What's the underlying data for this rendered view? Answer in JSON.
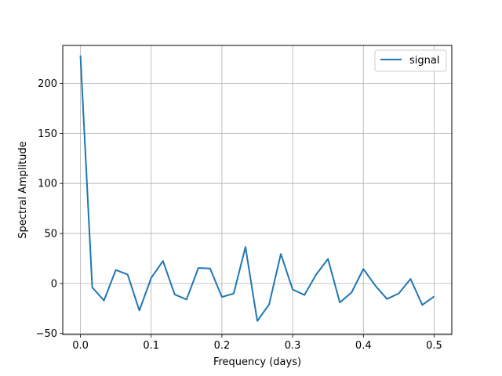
{
  "chart_data": {
    "type": "line",
    "xlabel": "Frequency (days)",
    "ylabel": "Spectral Amplitude",
    "xlim": [
      -0.025,
      0.525
    ],
    "ylim": [
      -51,
      238
    ],
    "xticks": [
      "0.0",
      "0.1",
      "0.2",
      "0.3",
      "0.4",
      "0.5"
    ],
    "yticks": [
      "−50",
      "0",
      "50",
      "100",
      "150",
      "200"
    ],
    "grid": true,
    "legend_position": "top-right",
    "series": [
      {
        "name": "signal",
        "color": "#1f77b4",
        "x": [
          0.0,
          0.0167,
          0.0333,
          0.05,
          0.0667,
          0.0833,
          0.1,
          0.1167,
          0.1333,
          0.15,
          0.1667,
          0.1833,
          0.2,
          0.2167,
          0.2333,
          0.25,
          0.2667,
          0.2833,
          0.3,
          0.3167,
          0.3333,
          0.35,
          0.3667,
          0.3833,
          0.4,
          0.4167,
          0.4333,
          0.45,
          0.4667,
          0.4833,
          0.5
        ],
        "y": [
          228,
          -4,
          -17,
          13.5,
          9,
          -27,
          5.5,
          22.5,
          -11,
          -16,
          15.5,
          15,
          -13.5,
          -10,
          36.5,
          -37.5,
          -21,
          29.5,
          -6,
          -11.5,
          9,
          24.5,
          -19,
          -9,
          14.5,
          -2,
          -15.5,
          -10,
          4.5,
          -21.5,
          -13
        ]
      }
    ]
  }
}
